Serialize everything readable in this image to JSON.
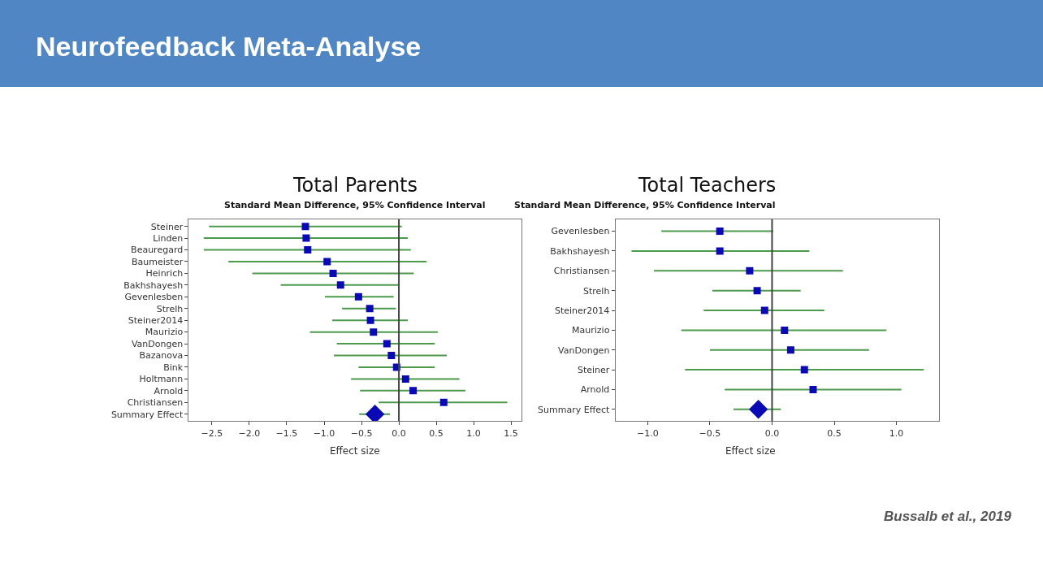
{
  "chart_data": [
    {
      "type": "scatter",
      "orientation": "horizontal",
      "title": "Total Parents",
      "subtitle": "Standard Mean Difference, 95% Confidence Interval",
      "xlabel": "Effect size",
      "annotations": [
        "Neurofeedback Meta-Analyse"
      ],
      "categories": [
        "Steiner",
        "Linden",
        "Beauregard",
        "Baumeister",
        "Heinrich",
        "Bakhshayesh",
        "Gevenlesben",
        "Strelh",
        "Steiner2014",
        "Maurizio",
        "VanDongen",
        "Bazanova",
        "Bink",
        "Holtmann",
        "Arnold",
        "Christiansen",
        "Summary Effect"
      ],
      "series": [
        {
          "color": "#0a0ab4",
          "marker": "square",
          "values": [
            -1.25,
            -1.24,
            -1.22,
            -0.96,
            -0.88,
            -0.78,
            -0.54,
            -0.39,
            -0.38,
            -0.34,
            -0.16,
            -0.1,
            -0.03,
            0.09,
            0.19,
            0.6,
            null
          ],
          "errors": [
            [
              -2.54,
              0.04
            ],
            [
              -2.61,
              0.12
            ],
            [
              -2.61,
              0.16
            ],
            [
              -2.28,
              0.37
            ],
            [
              -1.96,
              0.2
            ],
            [
              -1.58,
              0.0
            ],
            [
              -0.99,
              -0.07
            ],
            [
              -0.76,
              -0.04
            ],
            [
              -0.89,
              0.12
            ],
            [
              -1.19,
              0.52
            ],
            [
              -0.83,
              0.48
            ],
            [
              -0.87,
              0.64
            ],
            [
              -0.54,
              0.48
            ],
            [
              -0.64,
              0.81
            ],
            [
              -0.52,
              0.89
            ],
            [
              -0.27,
              1.45
            ],
            null
          ]
        },
        {
          "color": "#0a0ab4",
          "marker": "diamond",
          "values": [
            null,
            null,
            null,
            null,
            null,
            null,
            null,
            null,
            null,
            null,
            null,
            null,
            null,
            null,
            null,
            null,
            -0.32
          ],
          "errors": [
            null,
            null,
            null,
            null,
            null,
            null,
            null,
            null,
            null,
            null,
            null,
            null,
            null,
            null,
            null,
            null,
            [
              -0.53,
              -0.12
            ]
          ]
        }
      ],
      "ref_lines": [
        {
          "axis": "x",
          "value": 0,
          "color": "#444444"
        }
      ],
      "xlim": [
        -2.81,
        1.64
      ],
      "xticks": [
        {
          "value": -2.5,
          "label": "−2.5"
        },
        {
          "value": -2.0,
          "label": "−2.0"
        },
        {
          "value": -1.5,
          "label": "−1.5"
        },
        {
          "value": -1.0,
          "label": "−1.0"
        },
        {
          "value": -0.5,
          "label": "−0.5"
        },
        {
          "value": 0,
          "label": "0.0"
        },
        {
          "value": 0.5,
          "label": "0.5"
        },
        {
          "value": 1.0,
          "label": "1.0"
        },
        {
          "value": 1.5,
          "label": "1.5"
        }
      ]
    },
    {
      "type": "scatter",
      "orientation": "horizontal",
      "title": "Total Teachers",
      "subtitle": "Standard Mean Difference, 95% Confidence Interval",
      "xlabel": "Effect size",
      "annotations": [
        "Bussalb et al., 2019"
      ],
      "categories": [
        "Gevenlesben",
        "Bakhshayesh",
        "Christiansen",
        "Strelh",
        "Steiner2014",
        "Maurizio",
        "VanDongen",
        "Steiner",
        "Arnold",
        "Summary Effect"
      ],
      "series": [
        {
          "color": "#0a0ab4",
          "marker": "square",
          "values": [
            -0.42,
            -0.42,
            -0.18,
            -0.12,
            -0.06,
            0.1,
            0.15,
            0.26,
            0.33,
            null
          ],
          "errors": [
            [
              -0.89,
              0.01
            ],
            [
              -1.13,
              0.3
            ],
            [
              -0.95,
              0.57
            ],
            [
              -0.48,
              0.23
            ],
            [
              -0.55,
              0.42
            ],
            [
              -0.73,
              0.92
            ],
            [
              -0.5,
              0.78
            ],
            [
              -0.7,
              1.22
            ],
            [
              -0.38,
              1.04
            ],
            null
          ]
        },
        {
          "color": "#0a0ab4",
          "marker": "diamond",
          "values": [
            null,
            null,
            null,
            null,
            null,
            null,
            null,
            null,
            null,
            -0.11
          ],
          "errors": [
            null,
            null,
            null,
            null,
            null,
            null,
            null,
            null,
            null,
            [
              -0.31,
              0.07
            ]
          ]
        }
      ],
      "ref_lines": [
        {
          "axis": "x",
          "value": 0,
          "color": "#444444"
        }
      ],
      "xlim": [
        -1.26,
        1.34
      ],
      "xticks": [
        {
          "value": -1.0,
          "label": "−1.0"
        },
        {
          "value": -0.5,
          "label": "−0.5"
        },
        {
          "value": 0,
          "label": "0.0"
        },
        {
          "value": 0.5,
          "label": "0.5"
        },
        {
          "value": 1.0,
          "label": "1.0"
        }
      ]
    }
  ]
}
